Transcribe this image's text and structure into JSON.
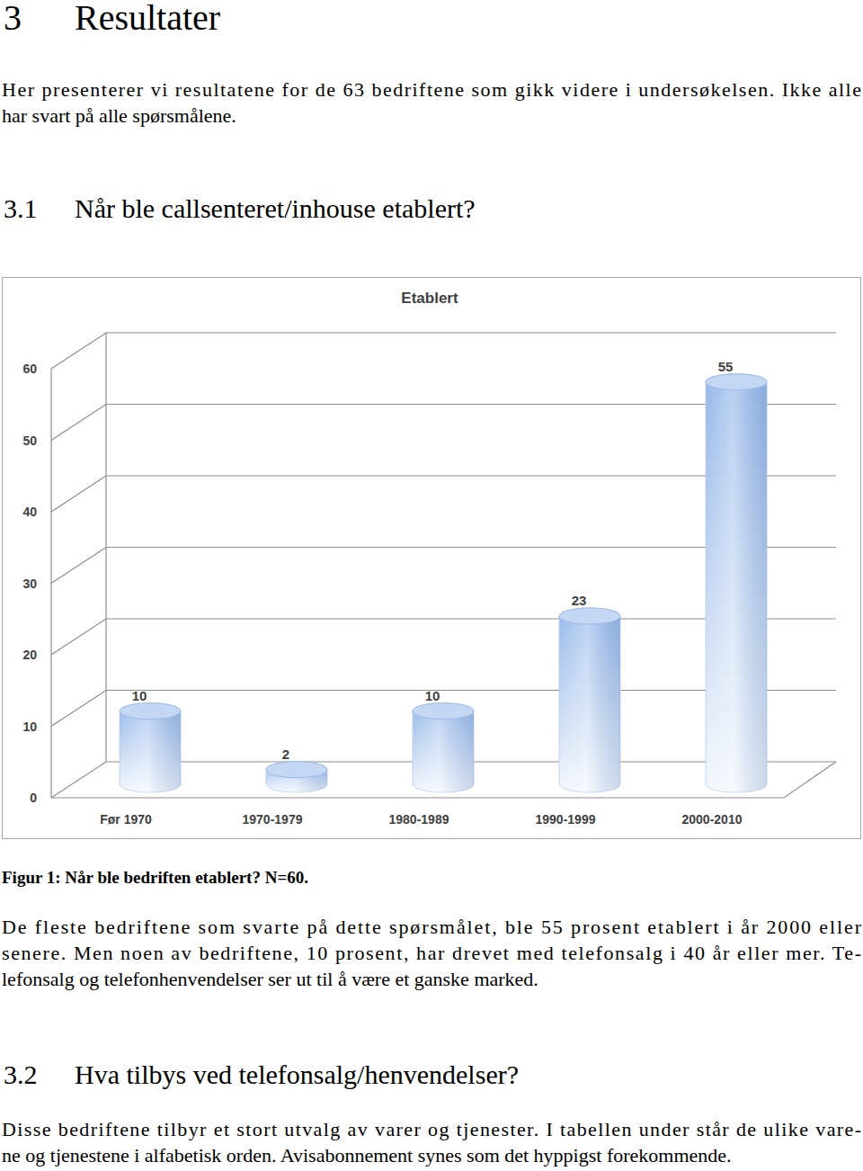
{
  "heading": {
    "number": "3",
    "title": "Resultater"
  },
  "intro": [
    "Her presenterer vi resultatene for de 63 bedriftene som gikk videre i undersøkelsen. Ikke alle",
    "har svart på alle spørsmålene."
  ],
  "section_1": {
    "number": "3.1",
    "title": "Når ble callsenteret/inhouse etablert?"
  },
  "chart_data": {
    "type": "bar",
    "title": "Etablert",
    "categories": [
      "Før 1970",
      "1970-1979",
      "1980-1989",
      "1990-1999",
      "2000-2010"
    ],
    "values": [
      10,
      2,
      10,
      23,
      55
    ],
    "color": "#95b7ea",
    "ylim": [
      0,
      60
    ],
    "yticks": [
      0,
      10,
      20,
      30,
      40,
      50,
      60
    ],
    "grid": true,
    "data_labels": true
  },
  "caption": "Figur 1: Når ble bedriften etablert? N=60.",
  "paragraph_1": [
    "De fleste bedriftene som svarte på dette spørsmålet, ble 55 prosent etablert i år 2000 eller",
    "senere. Men noen av bedriftene, 10 prosent, har drevet med telefonsalg i 40 år eller mer. Te-",
    "lefonsalg og telefonhenvendelser ser ut til å være et ganske marked."
  ],
  "section_2": {
    "number": "3.2",
    "title": "Hva tilbys ved telefonsalg/henvendelser?"
  },
  "paragraph_2": [
    "Disse bedriftene tilbyr et stort utvalg av varer og tjenester. I tabellen under står de ulike vare-",
    "ne og tjenestene i alfabetisk orden. Avisabonnement synes som det hyppigst forekommende."
  ]
}
